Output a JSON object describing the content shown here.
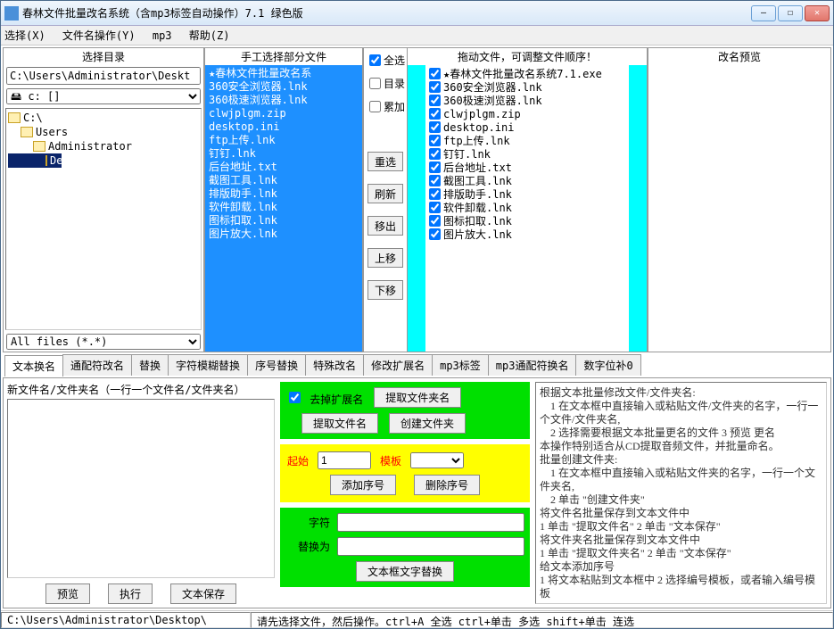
{
  "window": {
    "title": "春林文件批量改名系统（含mp3标签自动操作）7.1  绿色版",
    "min": "—",
    "max": "☐",
    "close": "✕"
  },
  "menu": [
    "选择(X)",
    "文件名操作(Y)",
    "mp3",
    "帮助(Z)"
  ],
  "headers": {
    "col1": "选择目录",
    "col2": "手工选择部分文件",
    "col4": "拖动文件，可调整文件顺序！",
    "col5": "改名预览"
  },
  "path": "C:\\Users\\Administrator\\Deskt",
  "drive_label": "c: []",
  "tree": [
    {
      "label": "C:\\",
      "indent": 0,
      "open": true,
      "sel": false
    },
    {
      "label": "Users",
      "indent": 1,
      "open": true,
      "sel": false
    },
    {
      "label": "Administrator",
      "indent": 2,
      "open": true,
      "sel": false
    },
    {
      "label": "Desktop",
      "indent": 3,
      "open": true,
      "sel": true
    }
  ],
  "filter": "All files (*.*)",
  "filelist": [
    "★春林文件批量改名系",
    "360安全浏览器.lnk",
    "360极速浏览器.lnk",
    "clwjplgm.zip",
    "desktop.ini",
    "ftp上传.lnk",
    "钉钉.lnk",
    "后台地址.txt",
    "截图工具.lnk",
    "排版助手.lnk",
    "软件卸载.lnk",
    "图标扣取.lnk",
    "图片放大.lnk"
  ],
  "checks": {
    "all": "全选",
    "dir": "目录",
    "acc": "累加"
  },
  "colbtns": [
    "重选",
    "刷新",
    "移出",
    "上移",
    "下移"
  ],
  "draglist": [
    "★春林文件批量改名系统7.1.exe",
    "360安全浏览器.lnk",
    "360极速浏览器.lnk",
    "clwjplgm.zip",
    "desktop.ini",
    "ftp上传.lnk",
    "钉钉.lnk",
    "后台地址.txt",
    "截图工具.lnk",
    "排版助手.lnk",
    "软件卸载.lnk",
    "图标扣取.lnk",
    "图片放大.lnk"
  ],
  "tabs": [
    "文本换名",
    "通配符改名",
    "替换",
    "字符模糊替换",
    "序号替换",
    "特殊改名",
    "修改扩展名",
    "mp3标签",
    "mp3通配符换名",
    "数字位补0"
  ],
  "left": {
    "label": "新文件名/文件夹名（一行一个文件名/文件夹名）",
    "btns": [
      "预览",
      "执行",
      "文本保存"
    ]
  },
  "mid": {
    "strip_ext": "去掉扩展名",
    "extract_folder": "提取文件夹名",
    "extract_file": "提取文件名",
    "create_folder": "创建文件夹",
    "start_lbl": "起始",
    "start_val": "1",
    "tpl_lbl": "模板",
    "add_seq": "添加序号",
    "del_seq": "删除序号",
    "char_lbl": "字符",
    "replace_lbl": "替换为",
    "txt_replace": "文本框文字替换"
  },
  "help": "根据文本批量修改文件/文件夹名:\n　1 在文本框中直接输入或粘贴文件/文件夹的名字，一行一个文件/文件夹名,\n　2 选择需要根据文本批量更名的文件   3 预览  更名\n 本操作特别适合从CD提取音频文件，并批量命名。\n批量创建文件夹:\n　1 在文本框中直接输入或粘贴文件夹的名字，一行一个文件夹名,\n　2 单击 \"创建文件夹\"\n将文件名批量保存到文本文件中\n1  单击 \"提取文件名\"      2  单击 \"文本保存\"\n将文件夹名批量保存到文本文件中\n1  单击 \"提取文件夹名\"    2  单击 \"文本保存\"\n给文本添加序号\n   1  将文本粘贴到文本框中   2 选择编号模板，或者输入编号模板",
  "status": {
    "path": "C:\\Users\\Administrator\\Desktop\\",
    "hint": "请先选择文件，然后操作。ctrl+A 全选 ctrl+单击 多选 shift+单击 连选"
  }
}
